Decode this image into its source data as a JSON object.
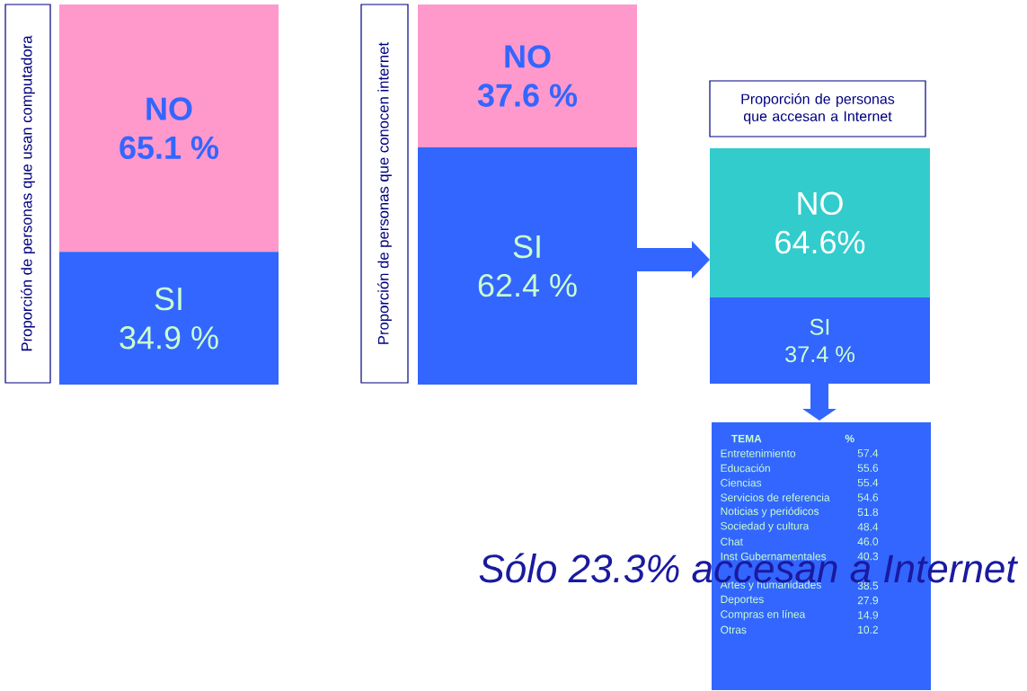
{
  "chart_data": [
    {
      "type": "bar",
      "stacked": true,
      "ylabel": "Proporción de personas que usan computadora",
      "categories": [
        null
      ],
      "series": [
        {
          "name": "SI",
          "color": "#3366ff",
          "values": [
            34.9
          ],
          "value_labels": [
            "34.9 %"
          ]
        },
        {
          "name": "NO",
          "color": "#ff99cc",
          "values": [
            65.1
          ],
          "value_labels": [
            "65.1 %"
          ]
        }
      ]
    },
    {
      "type": "bar",
      "stacked": true,
      "ylabel": "Proporción de personas que conocen internet",
      "categories": [
        null
      ],
      "series": [
        {
          "name": "SI",
          "color": "#3366ff",
          "values": [
            62.4
          ],
          "value_labels": [
            "62.4 %"
          ]
        },
        {
          "name": "NO",
          "color": "#ff99cc",
          "values": [
            37.6
          ],
          "value_labels": [
            "37.6 %"
          ]
        }
      ]
    },
    {
      "type": "bar",
      "stacked": true,
      "title": "Proporción de personas que accesan a Internet",
      "categories": [
        null
      ],
      "series": [
        {
          "name": "SI",
          "color": "#3366ff",
          "values": [
            37.4
          ],
          "value_labels": [
            "37.4 %"
          ]
        },
        {
          "name": "NO",
          "color": "#33cccc",
          "values": [
            64.6
          ],
          "value_labels": [
            "64.6%"
          ]
        }
      ]
    },
    {
      "type": "other",
      "xlabel": "TEMA",
      "ylabel": "%",
      "value_labels": [
        "57.4",
        "55.6",
        "55.4",
        "54.6",
        "51.8",
        "48.4",
        "46.0",
        "40.3",
        null,
        "38.5",
        "27.9",
        "14.9",
        "10.2"
      ],
      "annotations": [
        "Sólo 23.3% accesan a Internet"
      ],
      "categories": [
        "Entretenimiento",
        "Educación",
        "Ciencias",
        "Servicios de referencia",
        "Noticias y periódicos",
        "Sociedad y cultura",
        "Chat",
        "Inst Gubernamentales",
        null,
        "Artes y humanidades",
        "Deportes",
        "Compras en línea",
        "Otras"
      ],
      "values": [
        57.4,
        55.6,
        55.4,
        54.6,
        51.8,
        48.4,
        46.0,
        40.3,
        null,
        38.5,
        27.9,
        14.9,
        10.2
      ]
    }
  ]
}
